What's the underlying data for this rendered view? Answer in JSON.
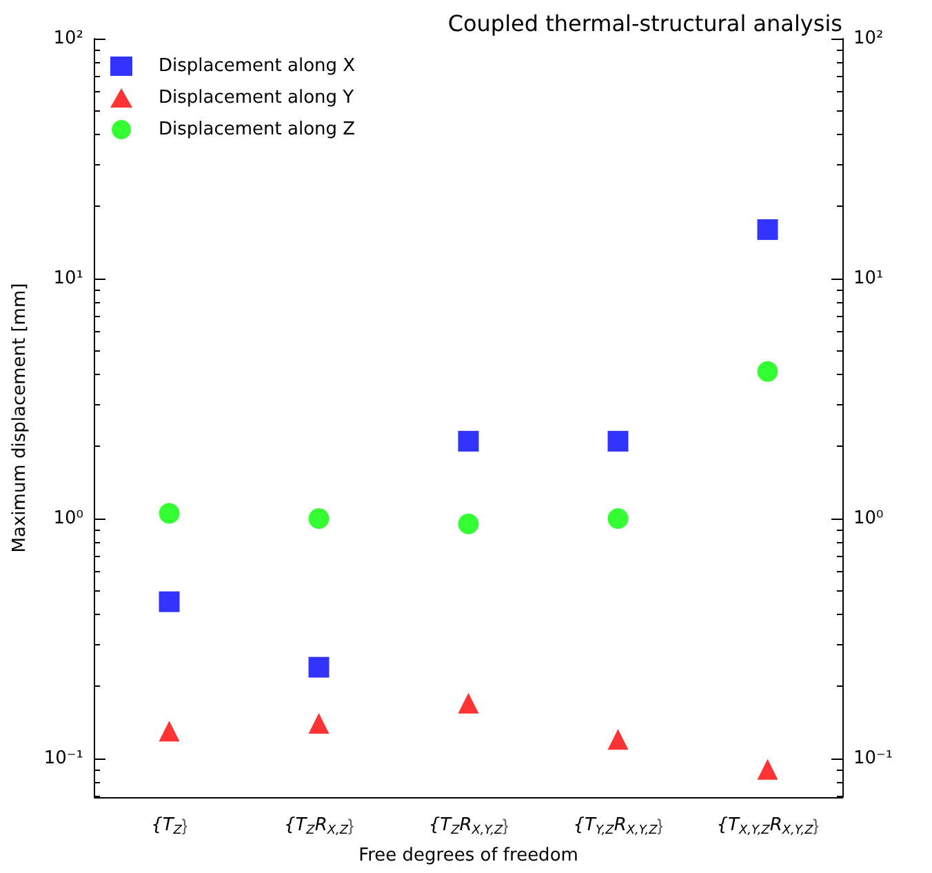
{
  "chart_data": {
    "type": "scatter",
    "title": "Coupled thermal-structural analysis",
    "xlabel": "Free degrees of freedom",
    "ylabel": "Maximum displacement [mm]",
    "categories": [
      "{T$_{Z}$}",
      "{T$_{Z}$R$_{X,Z}$}",
      "{T$_{Z}$R$_{X,Y,Z}$}",
      "{T$_{Y,Z}$R$_{X,Y,Z}$}",
      "{T$_{X,Y,Z}$R$_{X,Y,Z}$}"
    ],
    "series": [
      {
        "name": "Displacement along X",
        "color": "#0000ff",
        "marker": "square",
        "values": [
          0.45,
          0.24,
          2.1,
          2.1,
          16
        ]
      },
      {
        "name": "Displacement along Y",
        "color": "#ff0000",
        "marker": "triangle",
        "values": [
          0.13,
          0.14,
          0.17,
          0.12,
          0.09
        ]
      },
      {
        "name": "Displacement along Z",
        "color": "#00ff00",
        "marker": "circle",
        "values": [
          1.05,
          1.0,
          0.95,
          1.0,
          4.1
        ]
      }
    ],
    "ylim": [
      0.069,
      100
    ],
    "yticks": [
      {
        "value": 0.1,
        "label": "10⁻¹"
      },
      {
        "value": 1,
        "label": "10⁰"
      },
      {
        "value": 10,
        "label": "10¹"
      },
      {
        "value": 100,
        "label": "10²"
      }
    ],
    "log": "y",
    "grid": false,
    "legend": "top left"
  }
}
